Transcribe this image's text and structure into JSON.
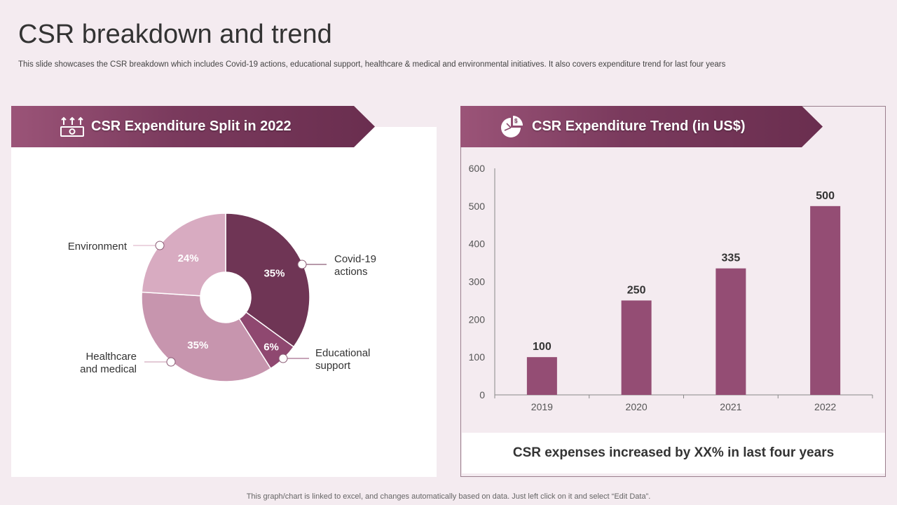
{
  "page": {
    "title": "CSR breakdown and trend",
    "subtitle": "This slide showcases the CSR breakdown which includes Covid-19 actions, educational support, healthcare & medical and environmental initiatives. It also covers expenditure trend for last four years",
    "bottom_note": "This graph/chart is linked to excel,  and changes automatically based on data. Just left click on it and select “Edit Data”.",
    "footnote": "CSR expenses increased by XX% in last four years"
  },
  "colors": {
    "accent": "#6f3555",
    "bar": "#944d74",
    "slice_covid": "#6f3555",
    "slice_edu": "#8f4870",
    "slice_health": "#c795ae",
    "slice_env": "#d8abc1"
  },
  "icons": {
    "left_banner": "money-growth-icon",
    "right_banner": "pie-chart-dollar-icon"
  },
  "chart_data": [
    {
      "type": "pie",
      "title": "CSR Expenditure Split in 2022",
      "donut": true,
      "slices": [
        {
          "name": "Covid-19 actions",
          "label_lines": [
            "Covid-19",
            "actions"
          ],
          "value": 35,
          "label": "35%"
        },
        {
          "name": "Educational support",
          "label_lines": [
            "Educational",
            "support"
          ],
          "value": 6,
          "label": "6%"
        },
        {
          "name": "Healthcare and medical",
          "label_lines": [
            "Healthcare",
            "and medical"
          ],
          "value": 35,
          "label": "35%"
        },
        {
          "name": "Environment",
          "label_lines": [
            "Environment"
          ],
          "value": 24,
          "label": "24%"
        }
      ]
    },
    {
      "type": "bar",
      "title": "CSR Expenditure Trend (in US$)",
      "categories": [
        "2019",
        "2020",
        "2021",
        "2022"
      ],
      "values": [
        100,
        250,
        335,
        500
      ],
      "data_labels": [
        "100",
        "250",
        "335",
        "500"
      ],
      "ylim": [
        0,
        600
      ],
      "yticks": [
        0,
        100,
        200,
        300,
        400,
        500,
        600
      ],
      "xlabel": "",
      "ylabel": "",
      "grid": false
    }
  ]
}
